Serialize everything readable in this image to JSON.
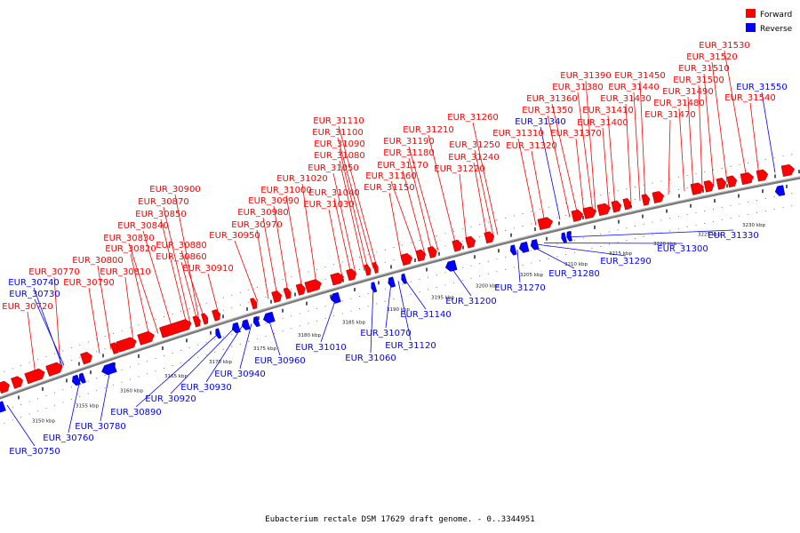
{
  "title": "Eubacterium rectale DSM 17629 draft genome. - 0..3344951",
  "legend": [
    {
      "name": "Forward",
      "color": "#ff0000"
    },
    {
      "name": "Reverse",
      "color": "#0000ff"
    }
  ],
  "colors": {
    "forward": "#ff0000",
    "reverse": "#0000ff",
    "backbone": "#888888"
  },
  "kbp_ticks": [
    "3150 kbp",
    "3155 kbp",
    "3160 kbp",
    "3165 kbp",
    "3170 kbp",
    "3175 kbp",
    "3180 kbp",
    "3185 kbp",
    "3190 kbp",
    "3195 kbp",
    "3200 kbp",
    "3205 kbp",
    "3210 kbp",
    "3215 kbp",
    "3220 kbp",
    "3225 kbp",
    "3230 kbp"
  ],
  "forward_labels": [
    "EUR_30720",
    "EUR_30770",
    "EUR_30790",
    "EUR_30800",
    "EUR_30810",
    "EUR_30820",
    "EUR_30830",
    "EUR_30840",
    "EUR_30850",
    "EUR_30860",
    "EUR_30870",
    "EUR_30880",
    "EUR_30900",
    "EUR_30910",
    "EUR_30950",
    "EUR_30970",
    "EUR_30980",
    "EUR_30990",
    "EUR_31000",
    "EUR_31020",
    "EUR_31030",
    "EUR_31040",
    "EUR_31050",
    "EUR_31080",
    "EUR_31090",
    "EUR_31100",
    "EUR_31110",
    "EUR_31150",
    "EUR_31160",
    "EUR_31170",
    "EUR_31180",
    "EUR_31190",
    "EUR_31210",
    "EUR_31220",
    "EUR_31240",
    "EUR_31250",
    "EUR_31260",
    "EUR_31310",
    "EUR_31320",
    "EUR_31350",
    "EUR_31360",
    "EUR_31370",
    "EUR_31380",
    "EUR_31390",
    "EUR_31400",
    "EUR_31410",
    "EUR_31430",
    "EUR_31440",
    "EUR_31450",
    "EUR_31470",
    "EUR_31480",
    "EUR_31490",
    "EUR_31500",
    "EUR_31510",
    "EUR_31520",
    "EUR_31530",
    "EUR_31540"
  ],
  "reverse_top_labels": [
    "EUR_30740",
    "EUR_30730",
    "EUR_31340",
    "EUR_31550"
  ],
  "reverse_bottom_labels": [
    "EUR_30750",
    "EUR_30760",
    "EUR_30780",
    "EUR_30890",
    "EUR_30920",
    "EUR_30930",
    "EUR_30940",
    "EUR_30960",
    "EUR_31010",
    "EUR_31060",
    "EUR_31070",
    "EUR_31120",
    "EUR_31140",
    "EUR_31200",
    "EUR_31270",
    "EUR_31280",
    "EUR_31290",
    "EUR_31300",
    "EUR_31330"
  ]
}
